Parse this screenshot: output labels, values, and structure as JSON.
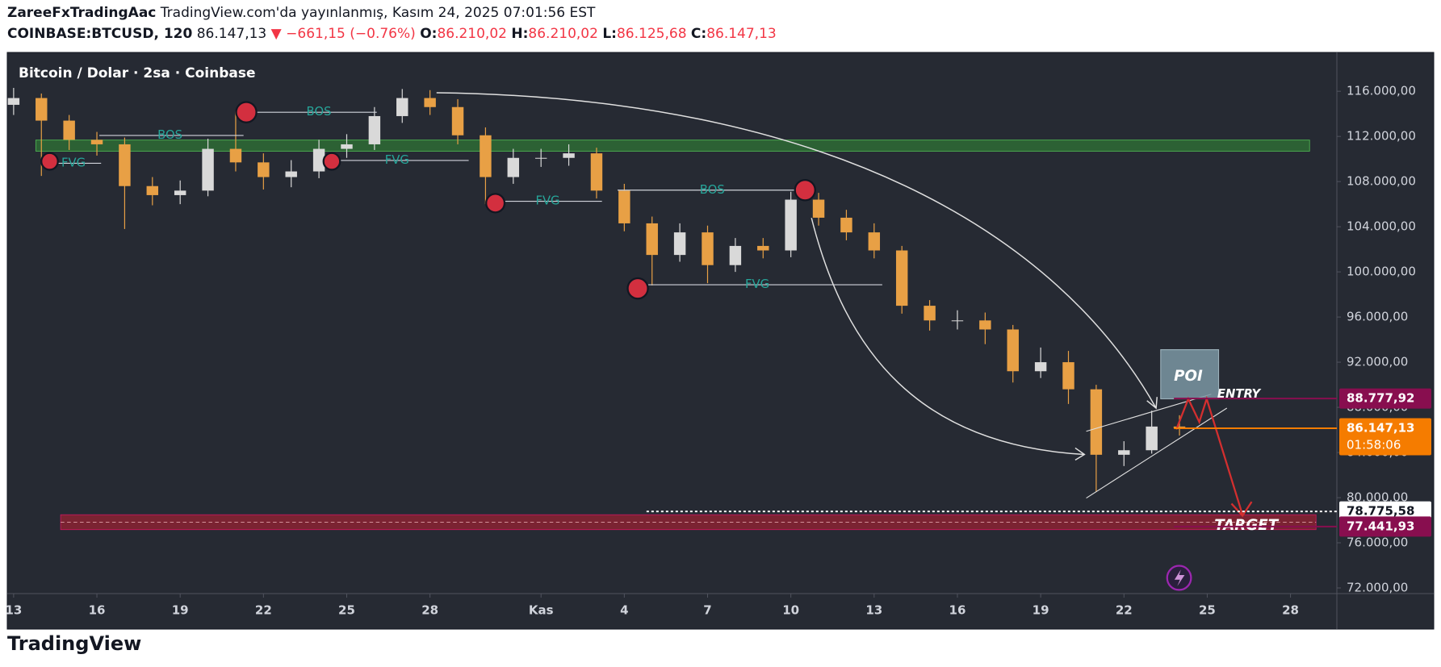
{
  "header": {
    "author": "ZareeFxTradingAac",
    "published": "TradingView.com'da yayınlanmış, Kasım 24, 2025 07:01:56 EST"
  },
  "symbol_bar": {
    "symbol": "COINBASE:BTCUSD, 120",
    "last": "86.147,13",
    "change": "▼ −661,15 (−0.76%)",
    "o_label": "O:",
    "o": "86.210,02",
    "h_label": "H:",
    "h": "86.210,02",
    "l_label": "L:",
    "l": "86.125,68",
    "c_label": "C:",
    "c": "86.147,13"
  },
  "chart_data": {
    "type": "candlestick",
    "title": "Bitcoin / Dolar · 2sa · Coinbase",
    "x": [
      0,
      1,
      2,
      3,
      4,
      5,
      6,
      7,
      8,
      9,
      10,
      11,
      12,
      13,
      14,
      15,
      16,
      17,
      18,
      19,
      20,
      21,
      22,
      23,
      24,
      25,
      26,
      27,
      28,
      29,
      30,
      31,
      32,
      33,
      34,
      35,
      36,
      37,
      38,
      39,
      40,
      41,
      42
    ],
    "open": [
      114800,
      115400,
      113400,
      111700,
      111300,
      107600,
      106800,
      107200,
      110900,
      109700,
      108400,
      108900,
      110900,
      111300,
      113800,
      115400,
      114600,
      112100,
      108400,
      110100,
      110100,
      110500,
      107200,
      104300,
      101500,
      103500,
      100600,
      102300,
      101900,
      106400,
      104800,
      103500,
      101900,
      97000,
      95700,
      95700,
      94900,
      91200,
      92000,
      89600,
      83800,
      84200,
      86300
    ],
    "high": [
      116300,
      115800,
      113900,
      112400,
      111900,
      108400,
      108100,
      111800,
      114200,
      110500,
      109900,
      111700,
      112200,
      114600,
      116200,
      116100,
      115300,
      112800,
      110900,
      110900,
      111300,
      111000,
      107800,
      104900,
      104300,
      104100,
      103000,
      103000,
      107100,
      107000,
      105500,
      104300,
      102300,
      97500,
      96600,
      96400,
      95300,
      93300,
      93000,
      90000,
      85000,
      87700,
      87300
    ],
    "low": [
      113900,
      108500,
      110800,
      110300,
      103800,
      105900,
      106000,
      106700,
      108900,
      107300,
      107500,
      108300,
      110100,
      110800,
      113200,
      113900,
      111300,
      106000,
      107800,
      109300,
      109400,
      106500,
      103600,
      98800,
      100900,
      99000,
      100000,
      101200,
      101300,
      104100,
      102800,
      101200,
      96300,
      94800,
      94900,
      93600,
      90200,
      90600,
      88300,
      80500,
      82800,
      83900,
      85500
    ],
    "close": [
      115400,
      113400,
      111700,
      111300,
      107600,
      106800,
      107200,
      110900,
      109700,
      108400,
      108900,
      110900,
      111300,
      113800,
      115400,
      114600,
      112100,
      108400,
      110100,
      110100,
      110500,
      107200,
      104300,
      101500,
      103500,
      100600,
      102300,
      101900,
      106400,
      104800,
      103500,
      101900,
      97000,
      95700,
      95700,
      94900,
      91200,
      92000,
      89600,
      83800,
      84200,
      86300,
      86147.13
    ],
    "up_color": "#d9d9d9",
    "down_color": "#e8a045",
    "xlim": [
      -0.2,
      47.67
    ],
    "xticks": [
      {
        "value": 0,
        "label": "13"
      },
      {
        "value": 3,
        "label": "16"
      },
      {
        "value": 6,
        "label": "19"
      },
      {
        "value": 9,
        "label": "22"
      },
      {
        "value": 12,
        "label": "25"
      },
      {
        "value": 15,
        "label": "28"
      },
      {
        "value": 19,
        "label": "Kas"
      },
      {
        "value": 22,
        "label": "4"
      },
      {
        "value": 25,
        "label": "7"
      },
      {
        "value": 28,
        "label": "10"
      },
      {
        "value": 31,
        "label": "13"
      },
      {
        "value": 34,
        "label": "16"
      },
      {
        "value": 37,
        "label": "19"
      },
      {
        "value": 40,
        "label": "22"
      },
      {
        "value": 43,
        "label": "25"
      },
      {
        "value": 46,
        "label": "28"
      }
    ],
    "ylim": [
      71500,
      119370
    ],
    "yticks": [
      {
        "value": 72000,
        "label": "72.000,00"
      },
      {
        "value": 76000,
        "label": "76.000,00"
      },
      {
        "value": 80000,
        "label": "80.000,00"
      },
      {
        "value": 84000,
        "label": "84.000,00"
      },
      {
        "value": 88000,
        "label": "88.000,00"
      },
      {
        "value": 92000,
        "label": "92.000,00"
      },
      {
        "value": 96000,
        "label": "96.000,00"
      },
      {
        "value": 100000,
        "label": "100.000,00"
      },
      {
        "value": 104000,
        "label": "104.000,00"
      },
      {
        "value": 108000,
        "label": "108.000,00"
      },
      {
        "value": 112000,
        "label": "112.000,00"
      },
      {
        "value": 116000,
        "label": "116.000,00"
      }
    ],
    "price_lines": [
      {
        "value": 88777.92,
        "label": "88.777,92",
        "color": "#880e4f"
      },
      {
        "value": 86147.13,
        "label": "86.147,13",
        "countdown": "01:58:06",
        "color": "#f57c00"
      },
      {
        "value": 78775.58,
        "label": "78.775,58",
        "color": "#ffffff"
      },
      {
        "value": 77441.93,
        "label": "77.441,93",
        "color": "#880e4f"
      }
    ],
    "annotations": [
      "BOS",
      "BOS",
      "BOS",
      "FVG",
      "FVG",
      "FVG",
      "FVG",
      "POI",
      "ENTRY",
      "TARGET"
    ]
  },
  "footer": {
    "brand": "TradingView"
  }
}
